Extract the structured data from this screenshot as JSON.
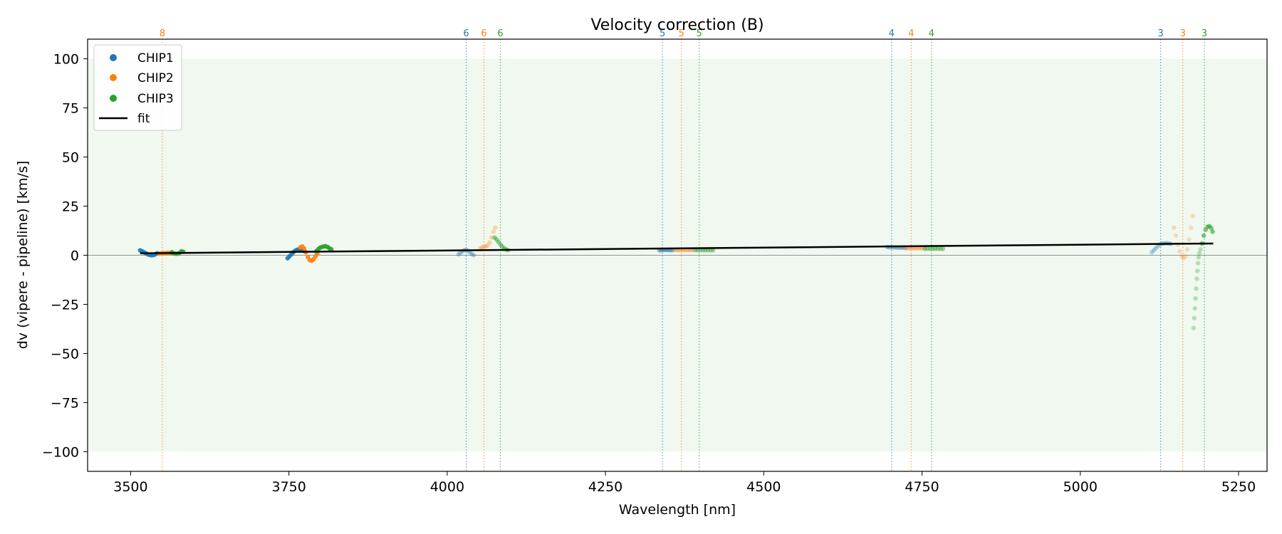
{
  "chart_data": {
    "type": "scatter",
    "title": "Velocity correction (B)",
    "xlabel": "Wavelength [nm]",
    "ylabel": "dv (vipere - pipeline) [km/s]",
    "xlim": [
      3432,
      5295
    ],
    "ylim": [
      -110,
      110
    ],
    "xticks": [
      3500,
      3750,
      4000,
      4250,
      4500,
      4750,
      5000,
      5250
    ],
    "yticks": [
      -100,
      -75,
      -50,
      -25,
      0,
      25,
      50,
      75,
      100
    ],
    "shaded_band": [
      -100,
      100
    ],
    "zero_line": 0,
    "grid": false,
    "legend_position": "upper left",
    "legend": [
      {
        "label": "CHIP1",
        "kind": "marker",
        "color": "#1f77b4"
      },
      {
        "label": "CHIP2",
        "kind": "marker",
        "color": "#ff7f0e"
      },
      {
        "label": "CHIP3",
        "kind": "marker",
        "color": "#2ca02c"
      },
      {
        "label": "fit",
        "kind": "line",
        "color": "#000000"
      }
    ],
    "fit": {
      "x": [
        3515,
        5210
      ],
      "y": [
        1.0,
        6.0
      ]
    },
    "order_markers": [
      {
        "label": "8",
        "x": 3550,
        "chip": "CHIP2"
      },
      {
        "label": "6",
        "x": 4030,
        "chip": "CHIP1"
      },
      {
        "label": "6",
        "x": 4058,
        "chip": "CHIP2"
      },
      {
        "label": "6",
        "x": 4084,
        "chip": "CHIP3"
      },
      {
        "label": "5",
        "x": 4340,
        "chip": "CHIP1"
      },
      {
        "label": "5",
        "x": 4370,
        "chip": "CHIP2"
      },
      {
        "label": "5",
        "x": 4398,
        "chip": "CHIP3"
      },
      {
        "label": "4",
        "x": 4702,
        "chip": "CHIP1"
      },
      {
        "label": "4",
        "x": 4733,
        "chip": "CHIP2"
      },
      {
        "label": "4",
        "x": 4765,
        "chip": "CHIP3"
      },
      {
        "label": "3",
        "x": 5127,
        "chip": "CHIP1"
      },
      {
        "label": "3",
        "x": 5162,
        "chip": "CHIP2"
      },
      {
        "label": "3",
        "x": 5196,
        "chip": "CHIP3"
      }
    ],
    "series": [
      {
        "name": "CHIP1",
        "color": "#1f77b4",
        "segments": [
          {
            "alpha": 0.9,
            "points": [
              [
                3515,
                2.5
              ],
              [
                3518,
                2.0
              ],
              [
                3521,
                1.5
              ],
              [
                3524,
                1.0
              ],
              [
                3527,
                0.5
              ],
              [
                3530,
                0.2
              ],
              [
                3533,
                0.0
              ],
              [
                3536,
                0.1
              ],
              [
                3539,
                0.5
              ],
              [
                3542,
                1.0
              ]
            ]
          },
          {
            "alpha": 0.9,
            "points": [
              [
                3748,
                -1.5
              ],
              [
                3751,
                -0.5
              ],
              [
                3754,
                0.5
              ],
              [
                3757,
                1.5
              ],
              [
                3760,
                2.3
              ],
              [
                3763,
                2.8
              ],
              [
                3766,
                3.0
              ],
              [
                3769,
                3.0
              ],
              [
                3772,
                2.6
              ],
              [
                3775,
                2.0
              ]
            ]
          },
          {
            "alpha": 0.35,
            "points": [
              [
                4018,
                0.5
              ],
              [
                4021,
                1.2
              ],
              [
                4024,
                2.0
              ],
              [
                4027,
                2.6
              ],
              [
                4030,
                2.7
              ],
              [
                4033,
                2.3
              ],
              [
                4036,
                1.5
              ],
              [
                4039,
                0.6
              ],
              [
                4042,
                0.0
              ]
            ]
          },
          {
            "alpha": 0.45,
            "points": [
              [
                4335,
                2.5
              ],
              [
                4338,
                2.6
              ],
              [
                4341,
                2.6
              ],
              [
                4344,
                2.7
              ],
              [
                4347,
                2.7
              ],
              [
                4350,
                2.6
              ],
              [
                4353,
                2.6
              ],
              [
                4356,
                2.6
              ]
            ]
          },
          {
            "alpha": 0.45,
            "points": [
              [
                4695,
                4.2
              ],
              [
                4699,
                4.1
              ],
              [
                4703,
                4.0
              ],
              [
                4707,
                4.0
              ],
              [
                4711,
                3.9
              ],
              [
                4715,
                3.9
              ],
              [
                4719,
                3.8
              ],
              [
                4723,
                3.8
              ]
            ]
          },
          {
            "alpha": 0.3,
            "points": [
              [
                5113,
                1.5
              ],
              [
                5116,
                2.5
              ],
              [
                5119,
                3.5
              ],
              [
                5122,
                4.5
              ],
              [
                5125,
                5.3
              ],
              [
                5128,
                5.8
              ],
              [
                5131,
                6.0
              ],
              [
                5134,
                6.1
              ],
              [
                5137,
                6.1
              ],
              [
                5140,
                6.0
              ],
              [
                5143,
                5.8
              ]
            ]
          }
        ]
      },
      {
        "name": "CHIP2",
        "color": "#ff7f0e",
        "segments": [
          {
            "alpha": 0.9,
            "points": [
              [
                3545,
                0.8
              ],
              [
                3549,
                1.0
              ],
              [
                3553,
                1.1
              ],
              [
                3557,
                1.2
              ],
              [
                3561,
                1.2
              ],
              [
                3565,
                1.1
              ]
            ]
          },
          {
            "alpha": 0.9,
            "points": [
              [
                3768,
                4.0
              ],
              [
                3771,
                4.5
              ],
              [
                3774,
                3.5
              ],
              [
                3777,
                1.5
              ],
              [
                3780,
                -1.0
              ],
              [
                3783,
                -2.5
              ],
              [
                3786,
                -2.8
              ],
              [
                3789,
                -2.0
              ],
              [
                3792,
                -0.5
              ],
              [
                3795,
                0.8
              ]
            ]
          },
          {
            "alpha": 0.3,
            "points": [
              [
                4052,
                3.5
              ],
              [
                4055,
                4.0
              ],
              [
                4058,
                4.3
              ],
              [
                4061,
                4.5
              ],
              [
                4064,
                5.0
              ],
              [
                4067,
                6.5
              ],
              [
                4070,
                9.0
              ],
              [
                4073,
                12.0
              ],
              [
                4076,
                14.0
              ]
            ]
          },
          {
            "alpha": 0.45,
            "points": [
              [
                4360,
                2.7
              ],
              [
                4364,
                2.7
              ],
              [
                4368,
                2.7
              ],
              [
                4372,
                2.7
              ],
              [
                4376,
                2.7
              ],
              [
                4380,
                2.7
              ],
              [
                4384,
                2.7
              ],
              [
                4388,
                2.7
              ]
            ]
          },
          {
            "alpha": 0.45,
            "points": [
              [
                4725,
                3.6
              ],
              [
                4729,
                3.6
              ],
              [
                4733,
                3.6
              ],
              [
                4737,
                3.6
              ],
              [
                4741,
                3.6
              ],
              [
                4745,
                3.6
              ],
              [
                4749,
                3.6
              ],
              [
                4753,
                3.6
              ]
            ]
          },
          {
            "alpha": 0.25,
            "points": [
              [
                5148,
                14.0
              ],
              [
                5151,
                10.0
              ],
              [
                5154,
                5.5
              ],
              [
                5157,
                2.0
              ],
              [
                5160,
                -0.5
              ],
              [
                5163,
                -1.5
              ],
              [
                5166,
                -0.5
              ],
              [
                5169,
                3.0
              ],
              [
                5172,
                8.0
              ],
              [
                5175,
                14.0
              ],
              [
                5178,
                20.0
              ]
            ]
          }
        ]
      },
      {
        "name": "CHIP3",
        "color": "#2ca02c",
        "segments": [
          {
            "alpha": 0.9,
            "points": [
              [
                3565,
                1.5
              ],
              [
                3568,
                1.0
              ],
              [
                3571,
                0.8
              ],
              [
                3574,
                0.8
              ],
              [
                3577,
                1.2
              ],
              [
                3580,
                2.0
              ],
              [
                3583,
                1.8
              ]
            ]
          },
          {
            "alpha": 0.9,
            "points": [
              [
                3793,
                2.0
              ],
              [
                3796,
                3.0
              ],
              [
                3799,
                3.8
              ],
              [
                3802,
                4.2
              ],
              [
                3805,
                4.5
              ],
              [
                3808,
                4.6
              ],
              [
                3811,
                4.2
              ],
              [
                3814,
                3.5
              ],
              [
                3817,
                3.0
              ]
            ]
          },
          {
            "alpha": 0.5,
            "points": [
              [
                4075,
                9.0
              ],
              [
                4078,
                8.0
              ],
              [
                4081,
                6.8
              ],
              [
                4084,
                5.5
              ],
              [
                4087,
                4.5
              ],
              [
                4090,
                3.5
              ],
              [
                4093,
                3.0
              ],
              [
                4096,
                2.6
              ]
            ]
          },
          {
            "alpha": 0.45,
            "points": [
              [
                4392,
                2.6
              ],
              [
                4396,
                2.6
              ],
              [
                4400,
                2.6
              ],
              [
                4404,
                2.6
              ],
              [
                4408,
                2.6
              ],
              [
                4412,
                2.6
              ],
              [
                4416,
                2.6
              ],
              [
                4420,
                2.6
              ]
            ]
          },
          {
            "alpha": 0.45,
            "points": [
              [
                4755,
                3.3
              ],
              [
                4759,
                3.3
              ],
              [
                4763,
                3.3
              ],
              [
                4767,
                3.3
              ],
              [
                4771,
                3.3
              ],
              [
                4775,
                3.3
              ],
              [
                4779,
                3.3
              ],
              [
                4783,
                3.3
              ]
            ]
          },
          {
            "alpha": 0.3,
            "points": [
              [
                5179,
                -37.0
              ],
              [
                5180,
                -32.0
              ],
              [
                5181,
                -27.0
              ],
              [
                5182,
                -22.0
              ],
              [
                5183,
                -17.0
              ],
              [
                5184,
                -12.0
              ],
              [
                5185,
                -8.0
              ],
              [
                5186,
                -4.0
              ],
              [
                5187,
                -1.0
              ],
              [
                5188,
                1.0
              ],
              [
                5190,
                3.0
              ]
            ]
          },
          {
            "alpha": 0.6,
            "points": [
              [
                5192,
                6.0
              ],
              [
                5195,
                10.0
              ],
              [
                5198,
                13.0
              ],
              [
                5201,
                14.5
              ],
              [
                5204,
                14.8
              ],
              [
                5207,
                13.8
              ],
              [
                5209,
                12.0
              ]
            ]
          }
        ]
      }
    ]
  }
}
